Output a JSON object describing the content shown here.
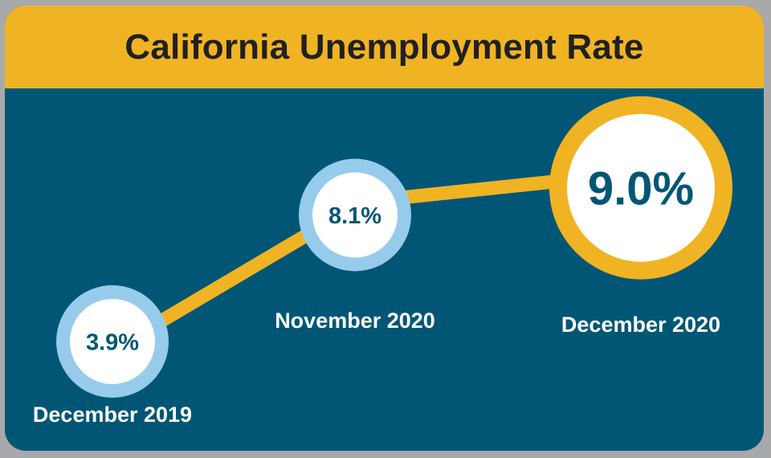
{
  "chart_data": {
    "type": "line",
    "title": "California Unemployment Rate",
    "categories": [
      "December 2019",
      "November 2020",
      "December 2020"
    ],
    "values": [
      3.9,
      8.1,
      9.0
    ],
    "value_labels": [
      "3.9%",
      "8.1%",
      "9.0%"
    ],
    "unit": "%",
    "highlight": "December 2020",
    "grid": false,
    "legend": "none"
  },
  "colors": {
    "background_frame": "#a8a9ab",
    "panel": "#025675",
    "title_bar": "#f0b323",
    "connector": "#f0b323",
    "small_ring": "#97cbec",
    "large_ring": "#f0b323",
    "value_text": "#025675",
    "label_text": "#ffffff"
  }
}
